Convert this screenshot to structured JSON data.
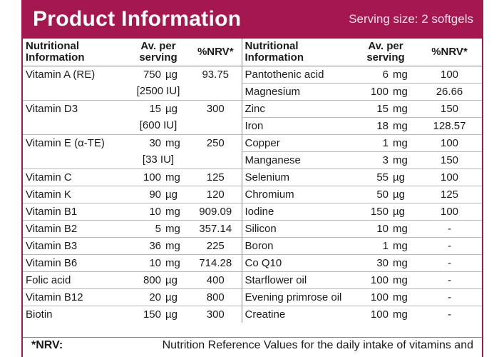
{
  "header": {
    "title": "Product Information",
    "serving": "Serving size: 2 softgels"
  },
  "columns": {
    "nutrient": "Nutritional Information",
    "nutrient_line1": "Nutritional",
    "nutrient_line2": "Information",
    "avg_line1": "Av. per",
    "avg_line2": "serving",
    "nrv": "%NRV*"
  },
  "left_rows": [
    {
      "name": "Vitamin A (RE)",
      "amount": "750",
      "unit": "µg",
      "nrv": "93.75"
    },
    {
      "name": "",
      "amount": "[2500 IU]",
      "unit": "",
      "nrv": ""
    },
    {
      "name": "Vitamin D3",
      "amount": "15",
      "unit": "µg",
      "nrv": "300"
    },
    {
      "name": "",
      "amount": "[600 IU]",
      "unit": "",
      "nrv": ""
    },
    {
      "name": "Vitamin E (α-TE)",
      "amount": "30",
      "unit": "mg",
      "nrv": "250"
    },
    {
      "name": "",
      "amount": "[33 IU]",
      "unit": "",
      "nrv": ""
    },
    {
      "name": "Vitamin C",
      "amount": "100",
      "unit": "mg",
      "nrv": "125"
    },
    {
      "name": "Vitamin K",
      "amount": "90",
      "unit": "µg",
      "nrv": "120"
    },
    {
      "name": "Vitamin B1",
      "amount": "10",
      "unit": "mg",
      "nrv": "909.09"
    },
    {
      "name": "Vitamin B2",
      "amount": "5",
      "unit": "mg",
      "nrv": "357.14"
    },
    {
      "name": "Vitamin B3",
      "amount": "36",
      "unit": "mg",
      "nrv": "225"
    },
    {
      "name": "Vitamin B6",
      "amount": "10",
      "unit": "mg",
      "nrv": "714.28"
    },
    {
      "name": "Folic acid",
      "amount": "800",
      "unit": "µg",
      "nrv": "400"
    },
    {
      "name": "Vitamin B12",
      "amount": "20",
      "unit": "µg",
      "nrv": "800"
    },
    {
      "name": "Biotin",
      "amount": "150",
      "unit": "µg",
      "nrv": "300"
    }
  ],
  "right_rows": [
    {
      "name": "Pantothenic acid",
      "amount": "6",
      "unit": "mg",
      "nrv": "100"
    },
    {
      "name": "Magnesium",
      "amount": "100",
      "unit": "mg",
      "nrv": "26.66"
    },
    {
      "name": "Zinc",
      "amount": "15",
      "unit": "mg",
      "nrv": "150"
    },
    {
      "name": "Iron",
      "amount": "18",
      "unit": "mg",
      "nrv": "128.57"
    },
    {
      "name": "Copper",
      "amount": "1",
      "unit": "mg",
      "nrv": "100"
    },
    {
      "name": "Manganese",
      "amount": "3",
      "unit": "mg",
      "nrv": "150"
    },
    {
      "name": "Selenium",
      "amount": "55",
      "unit": "µg",
      "nrv": "100"
    },
    {
      "name": "Chromium",
      "amount": "50",
      "unit": "µg",
      "nrv": "125"
    },
    {
      "name": "Iodine",
      "amount": "150",
      "unit": "µg",
      "nrv": "100"
    },
    {
      "name": "Silicon",
      "amount": "10",
      "unit": "mg",
      "nrv": "-"
    },
    {
      "name": "Boron",
      "amount": "1",
      "unit": "mg",
      "nrv": "-"
    },
    {
      "name": "Co Q10",
      "amount": "30",
      "unit": "mg",
      "nrv": "-"
    },
    {
      "name": "Starflower oil",
      "amount": "100",
      "unit": "mg",
      "nrv": "-"
    },
    {
      "name": "Evening primrose oil",
      "amount": "100",
      "unit": "mg",
      "nrv": "-"
    },
    {
      "name": "Creatine",
      "amount": "100",
      "unit": "mg",
      "nrv": "-"
    }
  ],
  "footnote": {
    "label": "*NRV:",
    "text": "Nutrition Reference Values for the daily intake of vitamins and"
  },
  "colors": {
    "accent": "#a5174f"
  }
}
